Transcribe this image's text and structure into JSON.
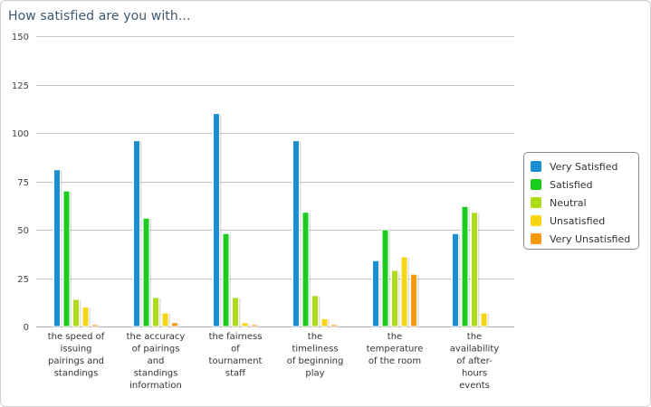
{
  "chart_data": {
    "type": "bar",
    "title": "How satisfied are you with...",
    "xlabel": "",
    "ylabel": "",
    "ylim": [
      0,
      150
    ],
    "yticks": [
      0,
      25,
      50,
      75,
      100,
      125,
      150
    ],
    "grid": true,
    "legend_position": "right",
    "categories": [
      [
        "the speed of",
        "issuing",
        "pairings and",
        "standings"
      ],
      [
        "the accuracy",
        "of pairings",
        "and",
        "standings",
        "information"
      ],
      [
        "the fairness",
        "of",
        "tournament",
        "staff"
      ],
      [
        "the",
        "timeliness",
        "of beginning",
        "play"
      ],
      [
        "the",
        "temperature",
        "of the room"
      ],
      [
        "the",
        "availability",
        "of after-",
        "hours",
        "events"
      ]
    ],
    "series": [
      {
        "name": "Very Satisfied",
        "color": "#1b8fd1",
        "values": [
          81,
          96,
          110,
          96,
          34,
          48
        ]
      },
      {
        "name": "Satisfied",
        "color": "#19cc1f",
        "values": [
          70,
          56,
          48,
          59,
          50,
          62
        ]
      },
      {
        "name": "Neutral",
        "color": "#aedb1a",
        "values": [
          14,
          15,
          15,
          16,
          29,
          59
        ]
      },
      {
        "name": "Unsatisfied",
        "color": "#f7d511",
        "values": [
          10,
          7,
          2,
          4,
          36,
          7
        ]
      },
      {
        "name": "Very Unsatisfied",
        "color": "#f79a13",
        "values": [
          1,
          2,
          1,
          1,
          27,
          0
        ]
      }
    ]
  }
}
